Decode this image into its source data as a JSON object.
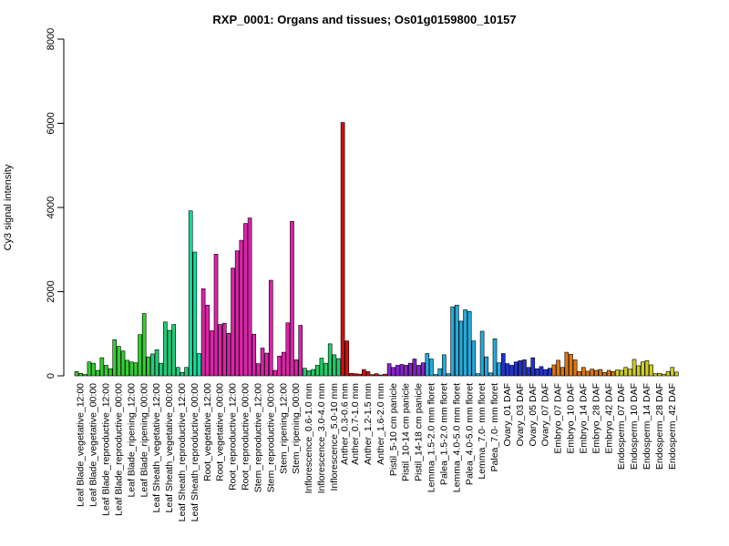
{
  "chart_data": {
    "type": "bar",
    "title": "RXP_0001: Organs and tissues; Os01g0159800_10157",
    "xlabel": "",
    "ylabel": "Cy3 signal intensity",
    "ylim": [
      0,
      8000
    ],
    "yticks": [
      0,
      2000,
      4000,
      6000,
      8000
    ],
    "grid": false,
    "legend": "none",
    "groups": [
      {
        "label": "Leaf Blade_vegetative_12:00",
        "color": "#33cc33",
        "values": [
          100,
          60,
          30
        ]
      },
      {
        "label": "Leaf Blade_vegetative_00:00",
        "color": "#33cc33",
        "values": [
          330,
          300,
          130
        ]
      },
      {
        "label": "Leaf Blade_reproductive_12:00",
        "color": "#33cc33",
        "values": [
          430,
          250,
          170
        ]
      },
      {
        "label": "Leaf Blade_reproductive_00:00",
        "color": "#33cc33",
        "values": [
          860,
          700,
          590
        ]
      },
      {
        "label": "Leaf Blade_ripening_12:00",
        "color": "#33cc33",
        "values": [
          370,
          330,
          310
        ]
      },
      {
        "label": "Leaf Blade_ripening_00:00",
        "color": "#33cc33",
        "values": [
          980,
          1480,
          450
        ]
      },
      {
        "label": "Leaf Sheath_vegetative_12:00",
        "color": "#22cc77",
        "values": [
          520,
          620,
          300
        ]
      },
      {
        "label": "Leaf Sheath_vegetative_00:00",
        "color": "#22cc77",
        "values": [
          1280,
          1080,
          1220
        ]
      },
      {
        "label": "Leaf Sheath_reproductive_12:00",
        "color": "#22cc77",
        "values": [
          200,
          80,
          200
        ]
      },
      {
        "label": "Leaf Sheath_reproductive_00:00",
        "color": "#11dd99",
        "values": [
          3920,
          2940,
          530
        ]
      },
      {
        "label": "Root_vegetative_12:00",
        "color": "#dd22aa",
        "values": [
          2070,
          1680,
          1070
        ]
      },
      {
        "label": "Root_vegetative_00:00",
        "color": "#dd22aa",
        "values": [
          2890,
          1220,
          1250
        ]
      },
      {
        "label": "Root_reproductive_12:00",
        "color": "#dd22aa",
        "values": [
          1010,
          2560,
          2970
        ]
      },
      {
        "label": "Root_reproductive_00:00",
        "color": "#dd22aa",
        "values": [
          3220,
          3620,
          3750
        ]
      },
      {
        "label": "Stem_reproductive_12:00",
        "color": "#dd22aa",
        "values": [
          990,
          290,
          660
        ]
      },
      {
        "label": "Stem_reproductive_00:00",
        "color": "#dd22aa",
        "values": [
          540,
          2270,
          130
        ]
      },
      {
        "label": "Stem_ripening_12:00",
        "color": "#dd22aa",
        "values": [
          470,
          560,
          1260
        ]
      },
      {
        "label": "Stem_ripening_00:00",
        "color": "#dd22aa",
        "values": [
          3670,
          380,
          1200
        ]
      },
      {
        "label": "Inflorescence_0.6-1.0 mm",
        "color": "#22cc66",
        "values": [
          180,
          120,
          150
        ]
      },
      {
        "label": "Inflorescence_3.0-4.0 mm",
        "color": "#22cc66",
        "values": [
          250,
          420,
          300
        ]
      },
      {
        "label": "Inflorescence_5.0-10 mm",
        "color": "#22cc66",
        "values": [
          760,
          500,
          410
        ]
      },
      {
        "label": "Anther_0.3-0.6 mm",
        "color": "#cc1111",
        "values": [
          6020,
          830
        ]
      },
      {
        "label": "Anther_0.7-1.0 mm",
        "color": "#cc1111",
        "values": [
          60,
          50,
          40
        ]
      },
      {
        "label": "Anther_1.2-1.5 mm",
        "color": "#cc1111",
        "values": [
          150,
          100,
          30
        ]
      },
      {
        "label": "Anther_1.6-2.0 mm",
        "color": "#cc1111",
        "values": [
          50,
          20,
          40
        ]
      },
      {
        "label": "Pistil_5-10 cm panicle",
        "color": "#8822cc",
        "values": [
          290,
          200,
          250
        ]
      },
      {
        "label": "Pistil_10-14 cm panicle",
        "color": "#8822cc",
        "values": [
          270,
          250,
          300
        ]
      },
      {
        "label": "Pistil_14-18 cm panicle",
        "color": "#8822cc",
        "values": [
          400,
          250,
          310
        ]
      },
      {
        "label": "Lemma_1.5-2.0 mm floret",
        "color": "#22aadd",
        "values": [
          530,
          400,
          30
        ]
      },
      {
        "label": "Palea_1.5-2.0 mm floret",
        "color": "#22aadd",
        "values": [
          170,
          500,
          50
        ]
      },
      {
        "label": "Lemma_4.0-5.0 mm floret",
        "color": "#22aadd",
        "values": [
          1640,
          1680,
          1300
        ]
      },
      {
        "label": "Palea_4.0-5.0 mm floret",
        "color": "#22aadd",
        "values": [
          1570,
          1530,
          830
        ]
      },
      {
        "label": "Lemma_7.0- mm floret",
        "color": "#22aadd",
        "values": [
          50,
          1060,
          450
        ]
      },
      {
        "label": "Palea_7.0- mm floret",
        "color": "#22aadd",
        "values": [
          70,
          880,
          310
        ]
      },
      {
        "label": "Ovary_01 DAF",
        "color": "#2233cc",
        "values": [
          530,
          290,
          250
        ]
      },
      {
        "label": "Ovary_03 DAF",
        "color": "#2233cc",
        "values": [
          330,
          360,
          380
        ]
      },
      {
        "label": "Ovary_05 DAF",
        "color": "#2233cc",
        "values": [
          200,
          430,
          170
        ]
      },
      {
        "label": "Ovary_07 DAF",
        "color": "#2233cc",
        "values": [
          220,
          150,
          180
        ]
      },
      {
        "label": "Embryo_07 DAF",
        "color": "#dd7711",
        "values": [
          260,
          370,
          200
        ]
      },
      {
        "label": "Embryo_10 DAF",
        "color": "#dd7711",
        "values": [
          560,
          510,
          380
        ]
      },
      {
        "label": "Embryo_14 DAF",
        "color": "#dd7711",
        "values": [
          100,
          200,
          110
        ]
      },
      {
        "label": "Embryo_28 DAF",
        "color": "#dd7711",
        "values": [
          160,
          130,
          150
        ]
      },
      {
        "label": "Embryo_42 DAF",
        "color": "#dd7711",
        "values": [
          80,
          130,
          100
        ]
      },
      {
        "label": "Endosperm_07 DAF",
        "color": "#cccc22",
        "values": [
          140,
          130,
          200
        ]
      },
      {
        "label": "Endosperm_10 DAF",
        "color": "#cccc22",
        "values": [
          160,
          390,
          240
        ]
      },
      {
        "label": "Endosperm_14 DAF",
        "color": "#cccc22",
        "values": [
          330,
          360,
          260
        ]
      },
      {
        "label": "Endosperm_28 DAF",
        "color": "#cccc22",
        "values": [
          50,
          60,
          40
        ]
      },
      {
        "label": "Endosperm_42 DAF",
        "color": "#cccc22",
        "values": [
          100,
          200,
          90
        ]
      }
    ],
    "tick_labels": [
      "Leaf Blade_vegetative_12:00",
      "Leaf Blade_vegetative_00:00",
      "Leaf Blade_reproductive_12:00",
      "Leaf Blade_reproductive_00:00",
      "Leaf Blade_ripening_12:00",
      "Leaf Blade_ripening_00:00",
      "Leaf Sheath_vegetative_12:00",
      "Leaf Sheath_vegetative_00:00",
      "Leaf Sheath_reproductive_12:00",
      "Leaf Sheath_reproductive_00:00",
      "Root_vegetative_12:00",
      "Root_vegetative_00:00",
      "Root_reproductive_12:00",
      "Root_reproductive_00:00",
      "Stem_reproductive_12:00",
      "Stem_reproductive_00:00",
      "Stem_ripening_12:00",
      "Stem_ripening_00:00",
      "Inflorescence_0.6-1.0 mm",
      "Inflorescence_3.0-4.0 mm",
      "Inflorescence_5.0-10 mm",
      "Anther_0.3-0.6 mm",
      "Anther_0.7-1.0 mm",
      "Anther_1.2-1.5 mm",
      "Anther_1.6-2.0 mm",
      "Pistil_5-10 cm panicle",
      "Pistil_10-14 cm panicle",
      "Pistil_14-18 cm panicle",
      "Lemma_1.5-2.0 mm floret",
      "Palea_1.5-2.0 mm floret",
      "Lemma_4.0-5.0 mm floret",
      "Palea_4.0-5.0 mm floret",
      "Lemma_7.0- mm floret",
      "Palea_7.0- mm floret",
      "Ovary_01 DAF",
      "Ovary_03 DAF",
      "Ovary_05 DAF",
      "Ovary_07 DAF",
      "Embryo_07 DAF",
      "Embryo_10 DAF",
      "Embryo_14 DAF",
      "Embryo_28 DAF",
      "Embryo_42 DAF",
      "Endosperm_07 DAF",
      "Endosperm_10 DAF",
      "Endosperm_14 DAF",
      "Endosperm_28 DAF",
      "Endosperm_42 DAF"
    ]
  }
}
